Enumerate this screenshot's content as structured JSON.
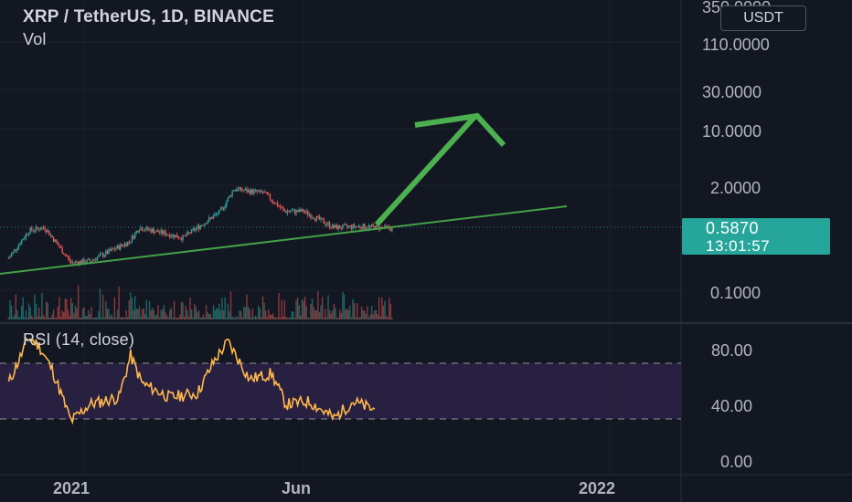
{
  "header": {
    "title": "XRP / TetherUS, 1D, BINANCE",
    "volume_label": "Vol",
    "currency": "USDT"
  },
  "price_label": {
    "value": "0.5870",
    "countdown": "13:01:57"
  },
  "colors": {
    "background": "#131722",
    "up": "#26a69a",
    "down": "#ef5350",
    "trendline": "#4caf50",
    "arrow": "#4caf50",
    "rsi_line": "#ffb74d",
    "rsi_band": "#3a2a5c"
  },
  "chart_data": [
    {
      "type": "candlestick",
      "title": "XRP / TetherUS, 1D, BINANCE",
      "y_scale": "log",
      "y_tick_labels": [
        "350.0000",
        "110.0000",
        "30.0000",
        "10.0000",
        "2.0000",
        "0.1000"
      ],
      "x_tick_labels": [
        "2021",
        "Jun",
        "2022"
      ],
      "last_price": 0.587,
      "approx_path": {
        "dates": [
          "2020-11-10",
          "2020-11-24",
          "2020-12-05",
          "2020-12-23",
          "2021-01-05",
          "2021-02-01",
          "2021-02-08",
          "2021-03-10",
          "2021-04-05",
          "2021-04-14",
          "2021-05-05",
          "2021-05-19",
          "2021-06-01",
          "2021-06-22",
          "2021-07-10",
          "2021-08-01"
        ],
        "close": [
          0.25,
          0.55,
          0.6,
          0.22,
          0.23,
          0.4,
          0.6,
          0.45,
          0.95,
          1.8,
          1.6,
          0.95,
          0.95,
          0.6,
          0.62,
          0.587
        ]
      }
    },
    {
      "type": "line",
      "title": "RSI (14, close)",
      "y_tick_labels": [
        "80.00",
        "40.00",
        "0.00"
      ],
      "ylim": [
        0,
        100
      ],
      "bands": [
        30,
        70
      ],
      "points": [
        [
          "2020-11-10",
          55
        ],
        [
          "2020-11-24",
          88
        ],
        [
          "2020-12-01",
          82
        ],
        [
          "2020-12-10",
          65
        ],
        [
          "2020-12-23",
          28
        ],
        [
          "2021-01-05",
          40
        ],
        [
          "2021-01-25",
          45
        ],
        [
          "2021-02-02",
          75
        ],
        [
          "2021-02-10",
          55
        ],
        [
          "2021-03-01",
          45
        ],
        [
          "2021-03-20",
          48
        ],
        [
          "2021-04-01",
          72
        ],
        [
          "2021-04-10",
          85
        ],
        [
          "2021-04-25",
          58
        ],
        [
          "2021-05-10",
          62
        ],
        [
          "2021-05-20",
          40
        ],
        [
          "2021-06-05",
          42
        ],
        [
          "2021-06-22",
          30
        ],
        [
          "2021-07-05",
          42
        ],
        [
          "2021-07-20",
          36
        ]
      ]
    }
  ]
}
